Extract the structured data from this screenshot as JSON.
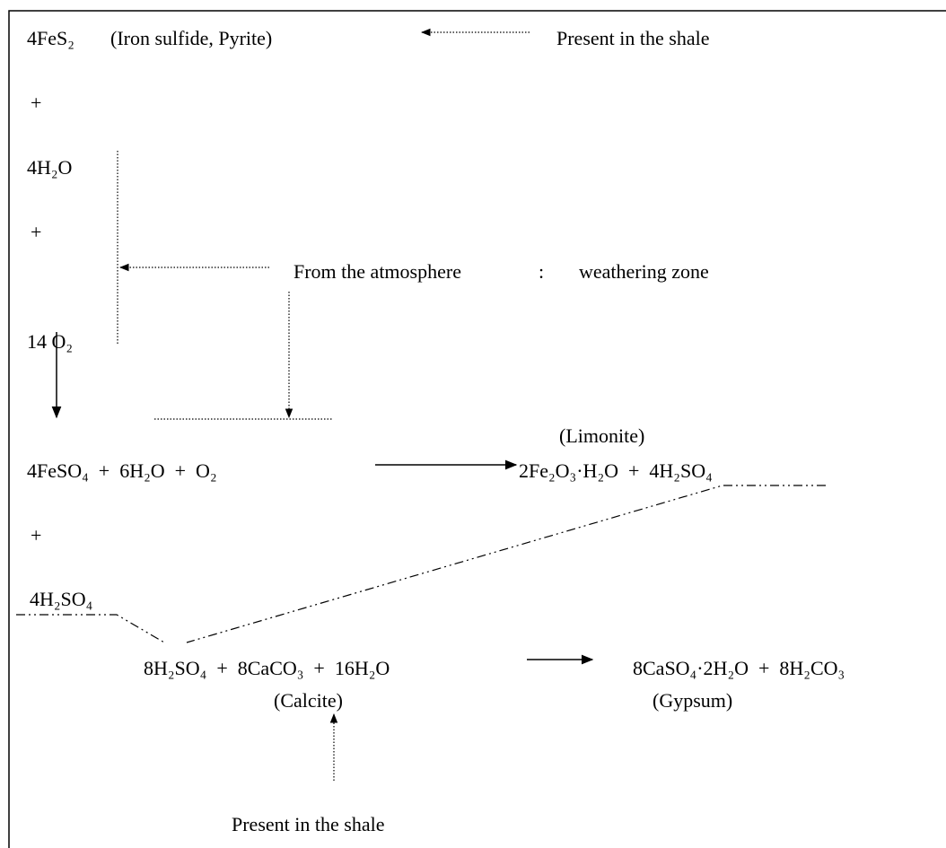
{
  "labels": {
    "pyrite_formula": "4FeS₂",
    "pyrite_name": "(Iron sulfide, Pyrite)",
    "shale_top": "Present in the shale",
    "plus_1": "+",
    "water": "4H₂O",
    "plus_2": "+",
    "atmosphere": "From the atmosphere",
    "colon": ":",
    "weathering": "weathering zone",
    "oxygen": "14 O₂",
    "limonite": "(Limonite)",
    "reaction_2_left": "4FeSO₄  +  6H₂O  +  O₂",
    "reaction_2_right": "2Fe₂O₃·H₂O  +  4H₂SO₄",
    "plus_3": "+",
    "acid": "4H₂SO₄",
    "reaction_3_left": "8H₂SO₄  +  8CaCO₃  +  16H₂O",
    "calcite": "(Calcite)",
    "reaction_3_right": "8CaSO₄·2H₂O  +  8H₂CO₃",
    "gypsum": "(Gypsum)",
    "shale_bottom": "Present in the shale"
  }
}
